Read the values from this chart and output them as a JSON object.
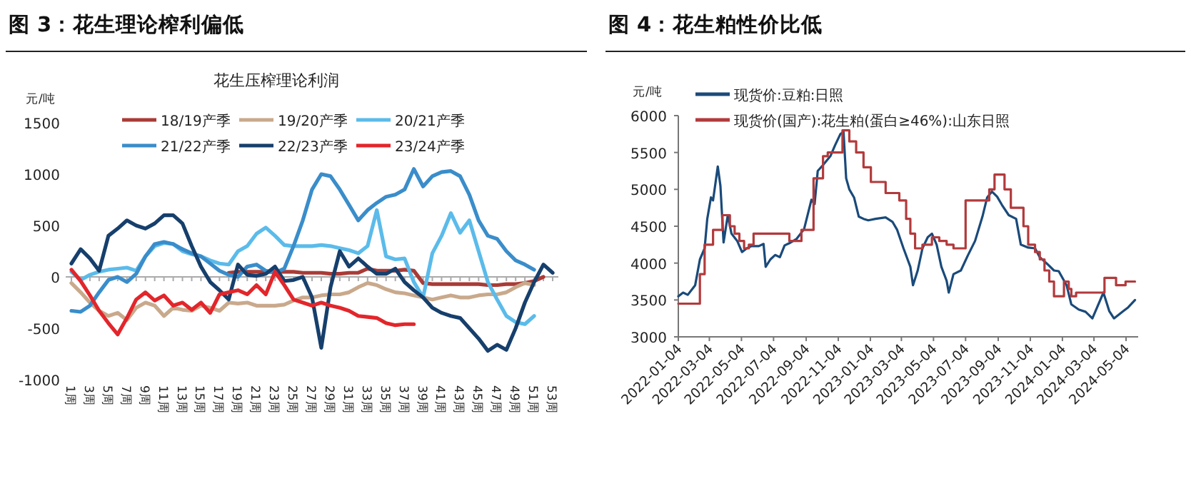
{
  "chart_data": [
    {
      "type": "line",
      "title": "图 3：花生理论榨利偏低",
      "subtitle": "花生压榨理论利润",
      "ylabel": "元/吨",
      "legend": "top",
      "ylim": [
        -1000,
        1500
      ],
      "yticks": [
        -1000,
        -500,
        0,
        500,
        1000,
        1500
      ],
      "categories": [
        "1周",
        null,
        "3周",
        null,
        "5周",
        null,
        "7周",
        null,
        "9周",
        null,
        "11周",
        null,
        "13周",
        null,
        "15周",
        null,
        "17周",
        null,
        "19周",
        null,
        "21周",
        null,
        "23周",
        null,
        "25周",
        null,
        "27周",
        null,
        "29周",
        null,
        "31周",
        null,
        "33周",
        null,
        "35周",
        null,
        "37周",
        null,
        "39周",
        null,
        "41周",
        null,
        "43周",
        null,
        "45周",
        null,
        "47周",
        null,
        "49周",
        null,
        "51周",
        null,
        "53周"
      ],
      "series": [
        {
          "name": "18/19产季",
          "color": "#a93b36",
          "values": [
            null,
            null,
            null,
            null,
            null,
            null,
            null,
            null,
            null,
            null,
            null,
            null,
            null,
            null,
            null,
            null,
            null,
            40,
            50,
            50,
            50,
            50,
            50,
            50,
            50,
            40,
            40,
            40,
            30,
            30,
            40,
            40,
            80,
            60,
            60,
            60,
            70,
            60,
            -60,
            -70,
            -70,
            -70,
            -70,
            -70,
            -70,
            -80,
            -80,
            -70,
            -70,
            -60,
            -40,
            0,
            null
          ]
        },
        {
          "name": "19/20产季",
          "color": "#c9a98c",
          "values": [
            -60,
            -150,
            -250,
            -330,
            -380,
            -350,
            -420,
            -300,
            -250,
            -280,
            -380,
            -300,
            -320,
            -330,
            -280,
            -300,
            -330,
            -250,
            -260,
            -250,
            -280,
            -280,
            -280,
            -270,
            -230,
            -200,
            -200,
            -180,
            -170,
            -170,
            -150,
            -100,
            -60,
            -80,
            -120,
            -150,
            -160,
            -180,
            -200,
            -220,
            -200,
            -180,
            -200,
            -200,
            -180,
            -170,
            -170,
            -150,
            -100,
            -60,
            -80,
            null,
            null
          ]
        },
        {
          "name": "20/21产季",
          "color": "#5bbbea",
          "values": [
            50,
            -30,
            20,
            50,
            70,
            80,
            90,
            60,
            200,
            300,
            330,
            320,
            250,
            220,
            200,
            160,
            130,
            120,
            250,
            300,
            420,
            480,
            400,
            310,
            300,
            300,
            300,
            310,
            300,
            280,
            260,
            230,
            300,
            650,
            200,
            170,
            180,
            -50,
            -200,
            230,
            400,
            620,
            430,
            550,
            250,
            -50,
            -220,
            -380,
            -440,
            -460,
            -380,
            null,
            null
          ]
        },
        {
          "name": "21/22产季",
          "color": "#3a8dca",
          "values": [
            -330,
            -340,
            -280,
            -150,
            -30,
            0,
            -50,
            30,
            200,
            320,
            340,
            320,
            270,
            230,
            200,
            130,
            60,
            20,
            0,
            100,
            120,
            60,
            40,
            80,
            300,
            550,
            850,
            1000,
            980,
            850,
            700,
            550,
            650,
            720,
            780,
            800,
            850,
            1050,
            880,
            980,
            1020,
            1030,
            980,
            800,
            550,
            400,
            370,
            250,
            160,
            120,
            70,
            null,
            null
          ]
        },
        {
          "name": "22/23产季",
          "color": "#163f6c",
          "values": [
            130,
            270,
            180,
            60,
            400,
            470,
            550,
            500,
            470,
            520,
            600,
            600,
            520,
            300,
            100,
            -50,
            -130,
            -220,
            120,
            20,
            10,
            30,
            100,
            -40,
            -30,
            0,
            -200,
            -690,
            -100,
            250,
            100,
            180,
            100,
            30,
            30,
            80,
            -50,
            -130,
            -200,
            -300,
            -350,
            -380,
            -400,
            -500,
            -600,
            -720,
            -660,
            -710,
            -500,
            -250,
            -50,
            120,
            40
          ]
        },
        {
          "name": "23/24产季",
          "color": "#e2262b",
          "values": [
            70,
            -40,
            -180,
            -330,
            -450,
            -560,
            -400,
            -220,
            -150,
            -230,
            -180,
            -280,
            -250,
            -320,
            -250,
            -350,
            -170,
            -150,
            -130,
            -170,
            -80,
            -170,
            50,
            -80,
            -220,
            -250,
            -280,
            -250,
            -280,
            -300,
            -330,
            -380,
            -390,
            -400,
            -450,
            -470,
            -460,
            -460,
            null,
            null,
            null,
            null,
            null,
            null,
            null,
            null,
            null,
            null,
            null,
            null,
            null,
            null,
            null
          ]
        }
      ]
    },
    {
      "type": "line",
      "title": "图 4：花生粕性价比低",
      "ylabel": "元/吨",
      "legend": "top left",
      "ylim": [
        3000,
        6000
      ],
      "yticks": [
        3000,
        3500,
        4000,
        4500,
        5000,
        5500,
        6000
      ],
      "xlim": [
        "2022-01-04",
        "2024-05-27"
      ],
      "xticks": [
        "2022-01-04",
        "2022-03-04",
        "2022-05-04",
        "2022-07-04",
        "2022-09-04",
        "2022-11-04",
        "2023-01-04",
        "2023-03-04",
        "2023-05-04",
        "2023-07-04",
        "2023-09-04",
        "2023-11-04",
        "2024-01-04",
        "2024-03-04",
        "2024-05-04"
      ],
      "series": [
        {
          "name": "现货价:豆粕:日照",
          "color": "#1a4a7a",
          "x": [
            "2022-01-04",
            "2022-01-13",
            "2022-01-22",
            "2022-02-05",
            "2022-02-14",
            "2022-02-23",
            "2022-02-28",
            "2022-03-07",
            "2022-03-11",
            "2022-03-20",
            "2022-03-25",
            "2022-03-31",
            "2022-04-08",
            "2022-04-15",
            "2022-04-26",
            "2022-05-05",
            "2022-05-14",
            "2022-05-23",
            "2022-06-06",
            "2022-06-15",
            "2022-06-19",
            "2022-06-28",
            "2022-07-07",
            "2022-07-16",
            "2022-07-25",
            "2022-08-03",
            "2022-08-17",
            "2022-08-31",
            "2022-09-14",
            "2022-09-20",
            "2022-09-26",
            "2022-10-06",
            "2022-10-20",
            "2022-10-29",
            "2022-11-08",
            "2022-11-14",
            "2022-11-19",
            "2022-11-25",
            "2022-12-04",
            "2022-12-13",
            "2022-12-22",
            "2022-12-31",
            "2023-01-14",
            "2023-02-02",
            "2023-02-15",
            "2023-02-24",
            "2023-03-08",
            "2023-03-21",
            "2023-03-26",
            "2023-04-04",
            "2023-04-13",
            "2023-04-23",
            "2023-05-01",
            "2023-05-10",
            "2023-05-19",
            "2023-05-29",
            "2023-06-02",
            "2023-06-11",
            "2023-06-25",
            "2023-07-08",
            "2023-07-22",
            "2023-08-05",
            "2023-08-14",
            "2023-08-23",
            "2023-09-02",
            "2023-09-11",
            "2023-09-24",
            "2023-10-08",
            "2023-10-17",
            "2023-10-31",
            "2023-11-13",
            "2023-11-22",
            "2023-12-06",
            "2023-12-19",
            "2023-12-28",
            "2024-01-12",
            "2024-01-21",
            "2024-02-04",
            "2024-02-17",
            "2024-03-01",
            "2024-03-22",
            "2024-04-02",
            "2024-04-11",
            "2024-04-20",
            "2024-04-29",
            "2024-05-08",
            "2024-05-21"
          ],
          "values": [
            3550,
            3600,
            3570,
            3700,
            4050,
            4200,
            4600,
            4890,
            4850,
            5310,
            5050,
            4280,
            4650,
            4400,
            4300,
            4150,
            4200,
            4230,
            4230,
            4260,
            3950,
            4050,
            4110,
            4080,
            4240,
            4270,
            4330,
            4460,
            4860,
            4800,
            5250,
            5330,
            5450,
            5600,
            5750,
            5780,
            5150,
            5000,
            4890,
            4630,
            4600,
            4580,
            4600,
            4620,
            4560,
            4450,
            4200,
            3950,
            3700,
            3900,
            4200,
            4350,
            4400,
            4250,
            3950,
            3760,
            3600,
            3850,
            3900,
            4100,
            4300,
            4630,
            4890,
            4970,
            4900,
            4790,
            4650,
            4600,
            4250,
            4210,
            4200,
            4080,
            3990,
            3900,
            3890,
            3700,
            3440,
            3370,
            3340,
            3250,
            3600,
            3350,
            3250,
            3300,
            3350,
            3400,
            3500
          ]
        },
        {
          "name": "现货价(国产):花生粕(蛋白≥46%):山东日照",
          "color": "#b23a3c",
          "type": "step",
          "x": [
            "2022-01-04",
            "2022-02-14",
            "2022-02-23",
            "2022-03-11",
            "2022-03-29",
            "2022-04-12",
            "2022-04-21",
            "2022-04-30",
            "2022-05-09",
            "2022-05-18",
            "2022-05-27",
            "2022-08-03",
            "2022-08-26",
            "2022-09-18",
            "2022-10-06",
            "2022-10-15",
            "2022-11-12",
            "2022-11-25",
            "2022-12-08",
            "2022-12-22",
            "2023-01-05",
            "2023-02-02",
            "2023-02-28",
            "2023-03-13",
            "2023-03-21",
            "2023-03-30",
            "2023-04-13",
            "2023-05-01",
            "2023-05-15",
            "2023-05-29",
            "2023-06-11",
            "2023-07-04",
            "2023-08-18",
            "2023-08-28",
            "2023-09-16",
            "2023-09-28",
            "2023-10-22",
            "2023-10-31",
            "2023-11-13",
            "2023-11-22",
            "2023-12-01",
            "2023-12-10",
            "2023-12-19",
            "2024-01-07",
            "2024-01-16",
            "2024-01-21",
            "2024-01-30",
            "2024-03-24",
            "2024-04-15",
            "2024-05-03",
            "2024-05-21"
          ],
          "values": [
            3450,
            3850,
            4250,
            4450,
            4650,
            4500,
            4400,
            4300,
            4200,
            4250,
            4400,
            4300,
            4450,
            5150,
            5450,
            5500,
            5800,
            5650,
            5500,
            5300,
            5100,
            4950,
            4850,
            4600,
            4400,
            4200,
            4250,
            4350,
            4300,
            4250,
            4200,
            4850,
            5000,
            5200,
            5000,
            4750,
            4500,
            4250,
            4150,
            4050,
            3900,
            3750,
            3550,
            3750,
            3650,
            3550,
            3600,
            3800,
            3700,
            3750,
            3750
          ]
        }
      ]
    }
  ]
}
